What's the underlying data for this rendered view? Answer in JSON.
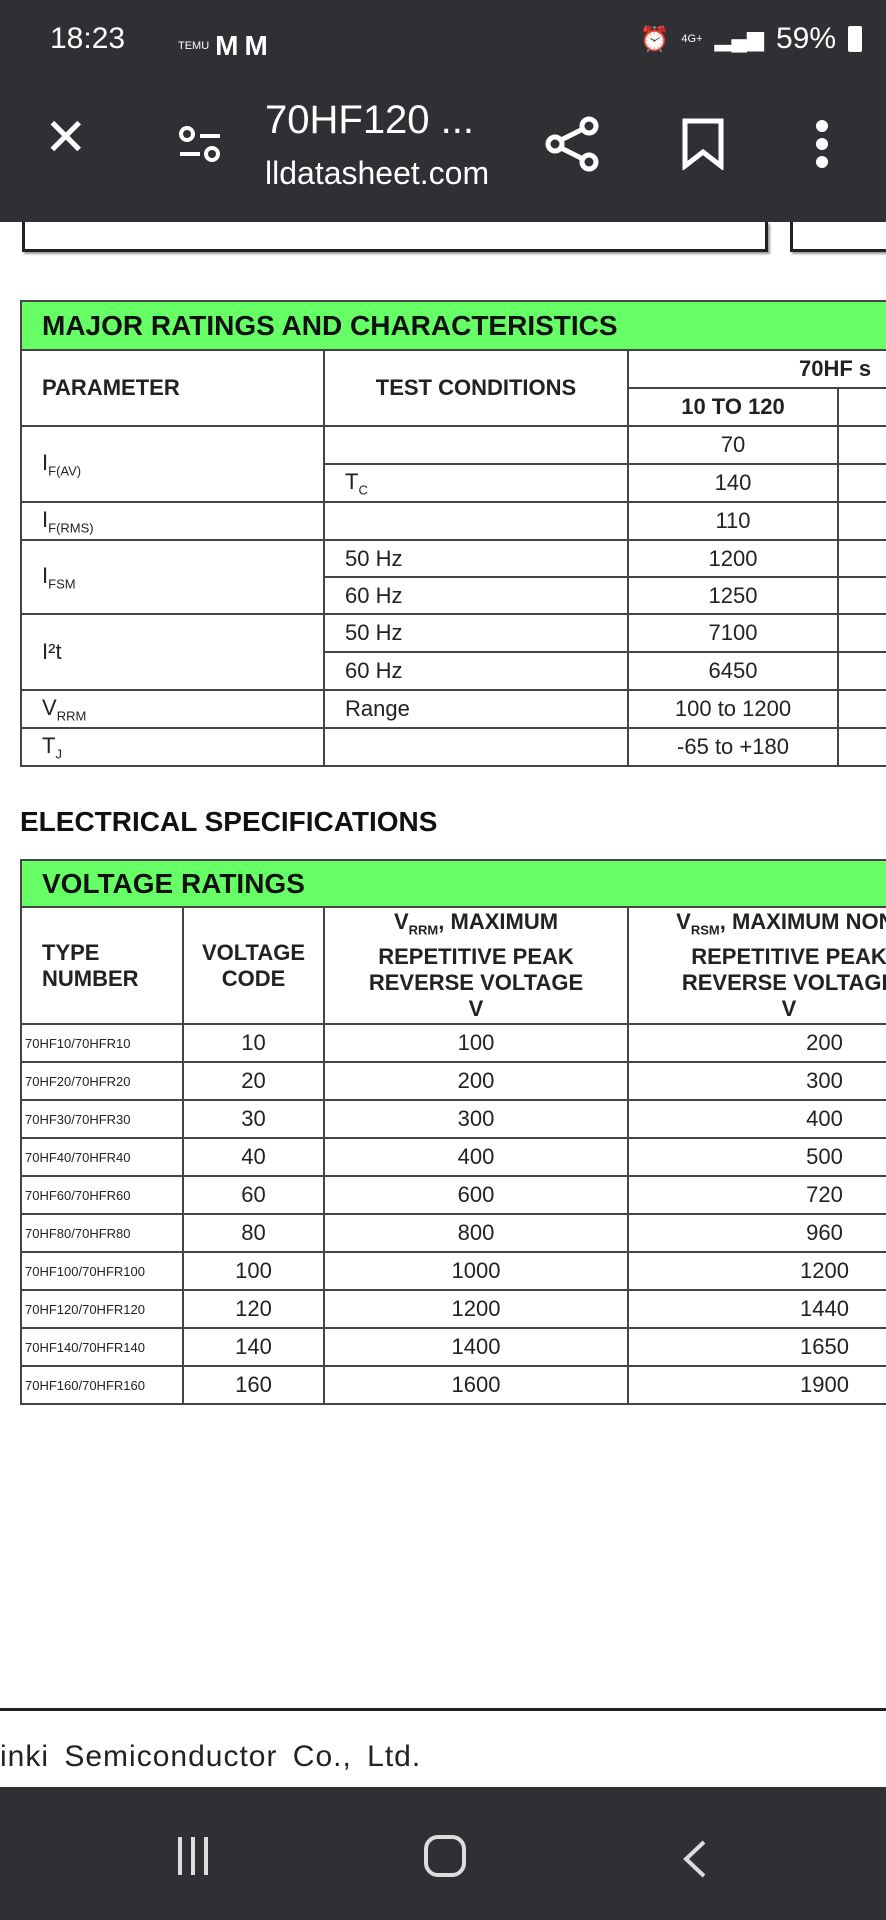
{
  "status": {
    "time": "18:23",
    "notif_text": "TEMU",
    "battery": "59%",
    "network": "4G+"
  },
  "toolbar": {
    "title": "70HF120 ...",
    "url": "lldatasheet.com"
  },
  "major": {
    "title": "MAJOR RATINGS AND CHARACTERISTICS",
    "col_param": "PARAMETER",
    "col_test": "TEST CONDITIONS",
    "col_series": "70HF s",
    "col_sub": "10 TO 120",
    "rows": [
      {
        "p": "I",
        "ps": "F(AV)",
        "t": "",
        "ts": "",
        "v": "70"
      },
      {
        "p": "",
        "ps": "",
        "t": "T",
        "ts": "C",
        "v": "140"
      },
      {
        "p": "I",
        "ps": "F(RMS)",
        "t": "",
        "ts": "",
        "v": "110"
      },
      {
        "p": "I",
        "ps": "FSM",
        "t": "50 Hz",
        "ts": "",
        "v": "1200"
      },
      {
        "p": "",
        "ps": "",
        "t": "60 Hz",
        "ts": "",
        "v": "1250"
      },
      {
        "p": "I²t",
        "ps": "",
        "t": "50 Hz",
        "ts": "",
        "v": "7100"
      },
      {
        "p": "",
        "ps": "",
        "t": "60 Hz",
        "ts": "",
        "v": "6450"
      },
      {
        "p": "V",
        "ps": "RRM",
        "t": "Range",
        "ts": "",
        "v": "100 to 1200"
      },
      {
        "p": "T",
        "ps": "J",
        "t": "",
        "ts": "",
        "v": "-65 to +180"
      }
    ]
  },
  "electrical_heading": "ELECTRICAL SPECIFICATIONS",
  "voltage": {
    "title": "VOLTAGE RATINGS",
    "h_type": "TYPE NUMBER",
    "h_code": "VOLTAGE CODE",
    "h_vrrm_sym": "V",
    "h_vrrm_sub": "RRM",
    "h_vrrm": ", MAXIMUM REPETITIVE PEAK REVERSE VOLTAGE",
    "h_vrrm_unit": "V",
    "h_vrsm_sym": "V",
    "h_vrsm_sub": "RSM",
    "h_vrsm": ", MAXIMUM NON-REPETITIVE PEAK REVERSE VOLTAGE",
    "h_vrsm_unit": "V",
    "rows": [
      [
        "70HF10/70HFR10",
        "10",
        "100",
        "200"
      ],
      [
        "70HF20/70HFR20",
        "20",
        "200",
        "300"
      ],
      [
        "70HF30/70HFR30",
        "30",
        "300",
        "400"
      ],
      [
        "70HF40/70HFR40",
        "40",
        "400",
        "500"
      ],
      [
        "70HF60/70HFR60",
        "60",
        "600",
        "720"
      ],
      [
        "70HF80/70HFR80",
        "80",
        "800",
        "960"
      ],
      [
        "70HF100/70HFR100",
        "100",
        "1000",
        "1200"
      ],
      [
        "70HF120/70HFR120",
        "120",
        "1200",
        "1440"
      ],
      [
        "70HF140/70HFR140",
        "140",
        "1400",
        "1650"
      ],
      [
        "70HF160/70HFR160",
        "160",
        "1600",
        "1900"
      ]
    ]
  },
  "footer": "inki Semiconductor Co., Ltd."
}
